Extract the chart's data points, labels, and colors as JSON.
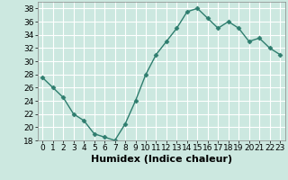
{
  "x": [
    0,
    1,
    2,
    3,
    4,
    5,
    6,
    7,
    8,
    9,
    10,
    11,
    12,
    13,
    14,
    15,
    16,
    17,
    18,
    19,
    20,
    21,
    22,
    23
  ],
  "y": [
    27.5,
    26.0,
    24.5,
    22.0,
    21.0,
    19.0,
    18.5,
    18.0,
    20.5,
    24.0,
    28.0,
    31.0,
    33.0,
    35.0,
    37.5,
    38.0,
    36.5,
    35.0,
    36.0,
    35.0,
    33.0,
    33.5,
    32.0,
    31.0
  ],
  "line_color": "#2e7d6e",
  "marker": "D",
  "marker_size": 2.5,
  "bg_color": "#cce8e0",
  "grid_color": "#ffffff",
  "xlabel": "Humidex (Indice chaleur)",
  "xlabel_fontsize": 8,
  "tick_fontsize": 6.5,
  "ylim": [
    18,
    39
  ],
  "yticks": [
    18,
    20,
    22,
    24,
    26,
    28,
    30,
    32,
    34,
    36,
    38
  ],
  "xlim": [
    -0.5,
    23.5
  ],
  "xticks": [
    0,
    1,
    2,
    3,
    4,
    5,
    6,
    7,
    8,
    9,
    10,
    11,
    12,
    13,
    14,
    15,
    16,
    17,
    18,
    19,
    20,
    21,
    22,
    23
  ],
  "line_width": 1.0
}
